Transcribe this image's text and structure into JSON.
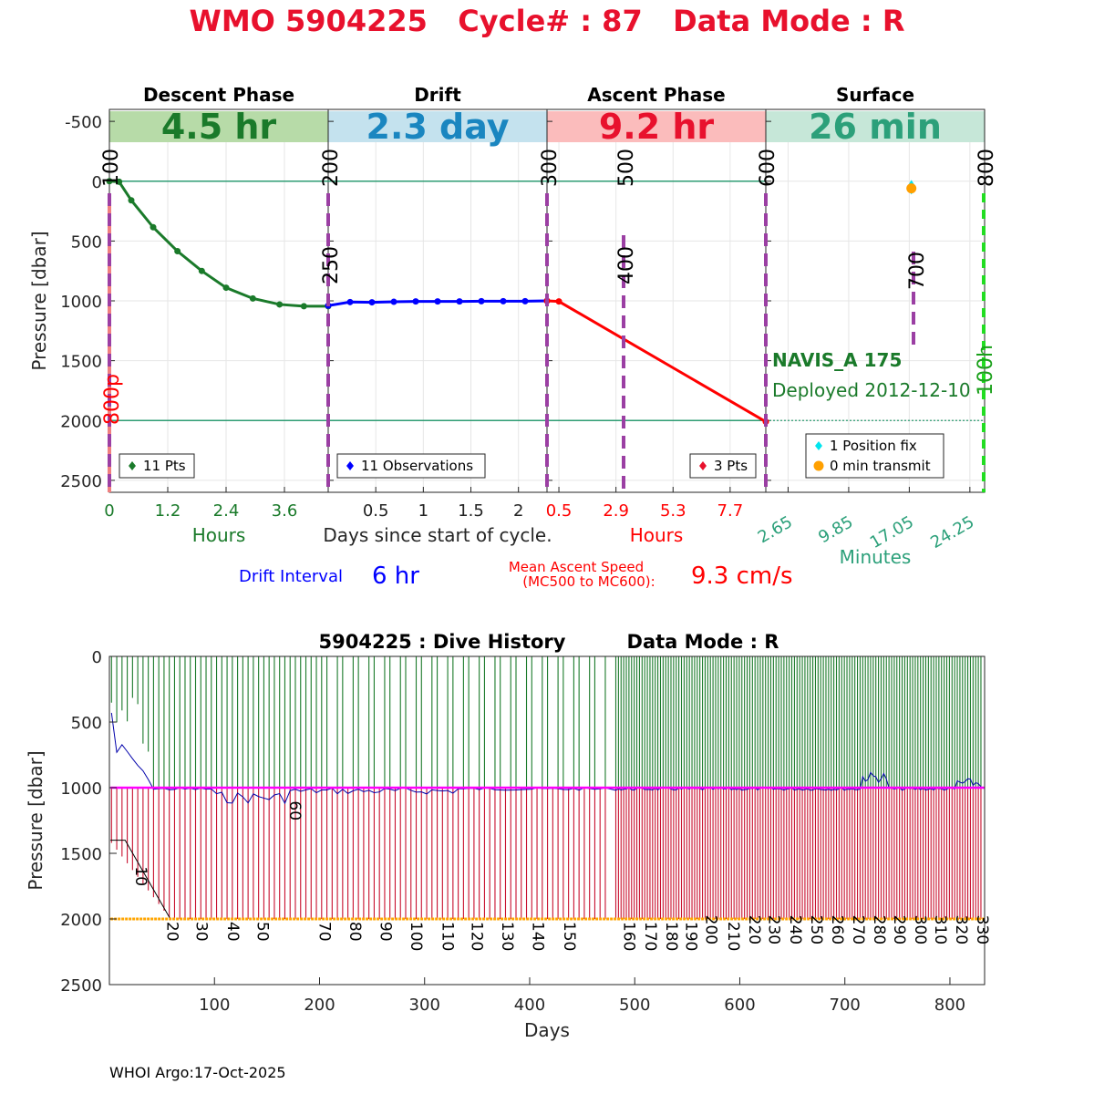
{
  "title": "WMO 5904225   Cycle# : 87   Data Mode : R",
  "footer": "WHOI Argo:17-Oct-2025",
  "colors": {
    "title": "#e8112d",
    "descent": "#1a7a2a",
    "drift": "#0000ff",
    "ascent": "#ff0000",
    "surface": "#2ca07a",
    "mc_marker": "#9b3fa3",
    "history_green": "#1a7a2a",
    "history_red": "#c8102e",
    "history_blue": "#0000aa",
    "history_magenta": "#ff00ff",
    "history_orange": "#ffa500",
    "fix": "#00e5ee",
    "transmit": "#ffa000"
  },
  "chart_data": [
    {
      "type": "line",
      "name": "cycle-profile",
      "ylabel": "Pressure [dbar]",
      "ylim": [
        2600,
        -600
      ],
      "yticks": [
        -500,
        0,
        500,
        1000,
        1500,
        2000,
        2500
      ],
      "xlabel_center": "Days since start of cycle.",
      "phases": [
        {
          "label": "Descent Phase",
          "duration": "4.5 hr",
          "axis_label": "Hours",
          "ticks": [
            "0",
            "1.2",
            "2.4",
            "3.6"
          ],
          "legend": "11 Pts"
        },
        {
          "label": "Drift",
          "duration": "2.3 day",
          "axis_label": "",
          "ticks": [
            "0.5",
            "1",
            "1.5",
            "2"
          ],
          "legend": "11 Observations"
        },
        {
          "label": "Ascent Phase",
          "duration": "9.2 hr",
          "axis_label": "Hours",
          "ticks": [
            "0.5",
            "2.9",
            "5.3",
            "7.7"
          ],
          "legend": "3 Pts"
        },
        {
          "label": "Surface",
          "duration": "26 min",
          "axis_label": "Minutes",
          "ticks": [
            "2.65",
            "9.85",
            "17.05",
            "24.25"
          ],
          "legend": [
            "1 Position fix",
            "0 min transmit"
          ]
        }
      ],
      "series": [
        {
          "name": "descent",
          "x": [
            0,
            0.2,
            0.45,
            0.9,
            1.4,
            1.9,
            2.4,
            2.95,
            3.5,
            4.0,
            4.5
          ],
          "y": [
            0,
            5,
            160,
            385,
            585,
            750,
            890,
            980,
            1030,
            1045,
            1045
          ]
        },
        {
          "name": "drift",
          "x": [
            0,
            0.23,
            0.46,
            0.69,
            0.92,
            1.15,
            1.38,
            1.61,
            1.84,
            2.07,
            2.3
          ],
          "y": [
            1040,
            1010,
            1012,
            1008,
            1005,
            1005,
            1005,
            1003,
            1003,
            1003,
            1000
          ]
        },
        {
          "name": "ascent",
          "x": [
            0,
            0.5,
            9.2
          ],
          "y": [
            1000,
            1005,
            2010
          ]
        },
        {
          "name": "position fix",
          "x": [
            17.3
          ],
          "y": [
            50
          ]
        },
        {
          "name": "transmit",
          "x": [
            17.3
          ],
          "y": [
            60
          ]
        }
      ],
      "reference_lines": [
        0,
        2000
      ],
      "mission_codes": [
        {
          "label": "100",
          "phase": 0,
          "rot": true
        },
        {
          "label": "800p",
          "phase": 0,
          "rot": true,
          "color": "red"
        },
        {
          "label": "200",
          "phase": 1,
          "rot": true
        },
        {
          "label": "250",
          "phase": 1,
          "rot": true
        },
        {
          "label": "300",
          "phase": 2,
          "rot": true
        },
        {
          "label": "400",
          "phase": 2,
          "rot": true
        },
        {
          "label": "500",
          "phase": 2,
          "rot": true
        },
        {
          "label": "600",
          "phase": 3,
          "rot": true
        },
        {
          "label": "700",
          "phase": 3,
          "rot": true
        },
        {
          "label": "800",
          "phase": 3,
          "rot": true
        },
        {
          "label": "100h",
          "phase": 3,
          "rot": true,
          "color": "green"
        }
      ],
      "float_info": {
        "model": "NAVIS_A 175",
        "deployed": "Deployed 2012-12-10"
      },
      "drift_interval": {
        "label": "Drift Interval",
        "value": "6 hr"
      },
      "ascent_speed": {
        "label_line1": "Mean Ascent Speed",
        "label_line2": "(MC500 to MC600):",
        "value": "9.3 cm/s"
      }
    },
    {
      "type": "bar",
      "name": "dive-history",
      "title": "5904225 : Dive History",
      "title_mode": "Data Mode : R",
      "xlabel": "Days",
      "ylabel": "Pressure [dbar]",
      "xlim": [
        0,
        833
      ],
      "ylim": [
        2500,
        0
      ],
      "xticks": [
        100,
        200,
        300,
        400,
        500,
        600,
        700,
        800
      ],
      "yticks": [
        0,
        500,
        1000,
        1500,
        2000,
        2500
      ],
      "cycle_labels": [
        {
          "label": "10",
          "day": 25,
          "p": 1730
        },
        {
          "label": "20",
          "day": 55,
          "p": 2150
        },
        {
          "label": "30",
          "day": 83,
          "p": 2150
        },
        {
          "label": "40",
          "day": 113,
          "p": 2150
        },
        {
          "label": "50",
          "day": 141,
          "p": 2150
        },
        {
          "label": "60",
          "day": 172,
          "p": 1230
        },
        {
          "label": "70",
          "day": 200,
          "p": 2150
        },
        {
          "label": "80",
          "day": 229,
          "p": 2150
        },
        {
          "label": "90",
          "day": 258,
          "p": 2150
        },
        {
          "label": "100",
          "day": 287,
          "p": 2150
        },
        {
          "label": "110",
          "day": 317,
          "p": 2150
        },
        {
          "label": "120",
          "day": 345,
          "p": 2150
        },
        {
          "label": "130",
          "day": 374,
          "p": 2150
        },
        {
          "label": "140",
          "day": 403,
          "p": 2150
        },
        {
          "label": "150",
          "day": 433,
          "p": 2150
        },
        {
          "label": "160",
          "day": 490,
          "p": 2150
        },
        {
          "label": "170",
          "day": 510,
          "p": 2150
        },
        {
          "label": "180",
          "day": 530,
          "p": 2150
        },
        {
          "label": "190",
          "day": 549,
          "p": 2150
        },
        {
          "label": "200",
          "day": 568,
          "p": 2100
        },
        {
          "label": "210",
          "day": 589,
          "p": 2150
        },
        {
          "label": "220",
          "day": 609,
          "p": 2100
        },
        {
          "label": "230",
          "day": 628,
          "p": 2100
        },
        {
          "label": "240",
          "day": 648,
          "p": 2100
        },
        {
          "label": "250",
          "day": 668,
          "p": 2100
        },
        {
          "label": "260",
          "day": 688,
          "p": 2100
        },
        {
          "label": "270",
          "day": 708,
          "p": 2100
        },
        {
          "label": "280",
          "day": 728,
          "p": 2100
        },
        {
          "label": "290",
          "day": 747,
          "p": 2100
        },
        {
          "label": "300",
          "day": 767,
          "p": 2100
        },
        {
          "label": "310",
          "day": 786,
          "p": 2100
        },
        {
          "label": "320",
          "day": 806,
          "p": 2100
        },
        {
          "label": "330",
          "day": 826,
          "p": 2100
        }
      ],
      "park_pressure": 1000,
      "profile_pressure": 2000
    }
  ]
}
